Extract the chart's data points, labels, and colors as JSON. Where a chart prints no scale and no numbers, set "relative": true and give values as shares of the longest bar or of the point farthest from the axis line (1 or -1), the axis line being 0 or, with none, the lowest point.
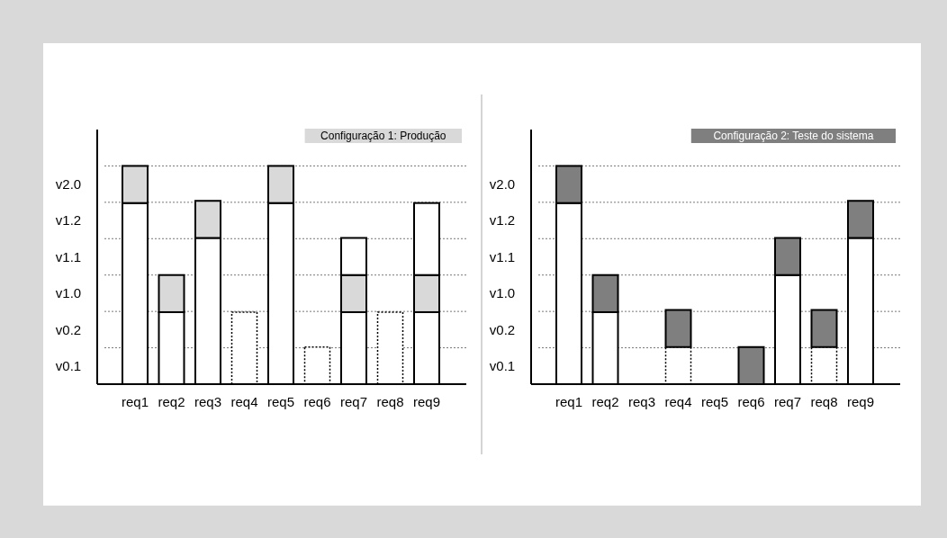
{
  "chart_data": [
    {
      "type": "bar",
      "title": "Configuração 1: Produção",
      "stacked": true,
      "relative": true,
      "categories": [
        "req1",
        "req2",
        "req3",
        "req4",
        "req5",
        "req6",
        "req7",
        "req8",
        "req9"
      ],
      "series": [
        {
          "color": "#ffffff",
          "values": [
            0.83,
            0.33,
            0.67,
            null,
            0.83,
            null,
            0.33,
            null,
            0.33
          ]
        },
        {
          "color": "#ffffff",
          "line_style": "dotted",
          "values": [
            null,
            null,
            null,
            0.33,
            null,
            0.17,
            null,
            0.33,
            null
          ]
        },
        {
          "color": "#d9d9d9",
          "values": [
            0.17,
            0.17,
            0.17,
            null,
            0.17,
            null,
            0.17,
            null,
            0.17
          ]
        },
        {
          "color": "#ffffff",
          "values": [
            null,
            null,
            null,
            null,
            null,
            null,
            0.17,
            null,
            0.33
          ]
        }
      ],
      "annotations": [
        "v0.1",
        "v0.2",
        "v1.0",
        "v1.1",
        "v1.2",
        "v2.0"
      ],
      "grid": "y"
    },
    {
      "type": "bar",
      "title": "Configuração 2: Teste do sistema",
      "stacked": true,
      "relative": true,
      "categories": [
        "req1",
        "req2",
        "req3",
        "req4",
        "req5",
        "req6",
        "req7",
        "req8",
        "req9"
      ],
      "series": [
        {
          "color": "#ffffff",
          "values": [
            0.83,
            0.33,
            null,
            null,
            null,
            null,
            0.5,
            null,
            0.67
          ]
        },
        {
          "color": "#ffffff",
          "line_style": "dotted",
          "values": [
            null,
            null,
            null,
            0.17,
            null,
            null,
            null,
            0.17,
            null
          ]
        },
        {
          "color": "#7f7f7f",
          "values": [
            0.17,
            0.17,
            null,
            0.17,
            null,
            0.17,
            0.17,
            0.17,
            0.17
          ]
        }
      ],
      "annotations": [
        "v0.1",
        "v0.2",
        "v1.0",
        "v1.1",
        "v1.2",
        "v2.0"
      ],
      "grid": "y"
    }
  ]
}
